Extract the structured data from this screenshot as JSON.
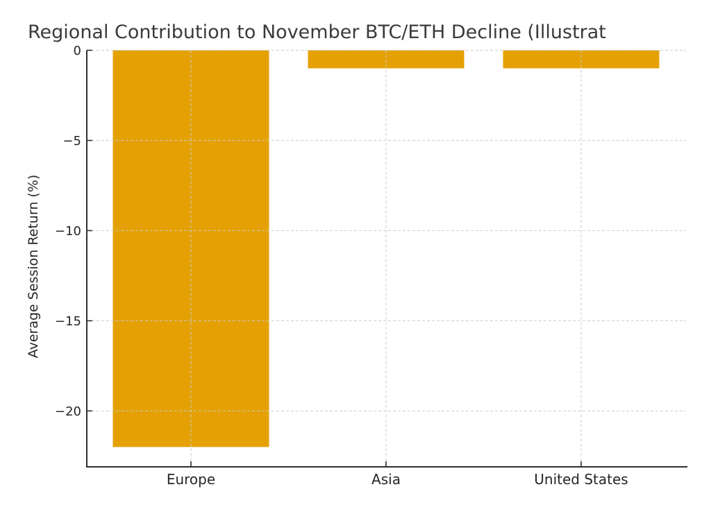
{
  "chart_data": {
    "type": "bar",
    "title": "Regional Contribution to November BTC/ETH Decline (Illustrat",
    "title_clipped_at_right_edge": true,
    "xlabel": "",
    "ylabel": "Average Session Return (%)",
    "categories": [
      "Europe",
      "Asia",
      "United States"
    ],
    "values": [
      -22,
      -1,
      -1
    ],
    "yticks": [
      0,
      -5,
      -10,
      -15,
      -20
    ],
    "ytick_labels": [
      "0",
      "−5",
      "−10",
      "−15",
      "−20"
    ],
    "ylim": [
      -23.1,
      0
    ],
    "bar_width_fraction": 0.8,
    "grid": "dashed light-gray horizontal and vertical gridlines, drawn above bars",
    "legend": "none",
    "spines": "left and bottom only, ticks point inward",
    "colors": {
      "bar": "#E5A104",
      "grid": "#C9C9C9",
      "spine": "#2E2E2E",
      "tick_text": "#262626",
      "title_text": "#3A3A3A",
      "background": "#FFFFFF"
    }
  }
}
